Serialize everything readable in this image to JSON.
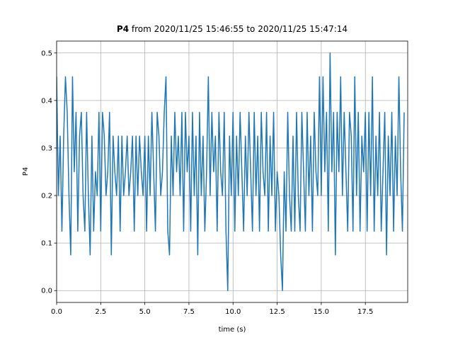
{
  "chart_data": {
    "type": "line",
    "title_bold": "P4",
    "title": "from 2020/11/25 15:46:55 to 2020/11/25 15:47:14",
    "xlabel": "time (s)",
    "ylabel": "P4",
    "color": "#1f77b4",
    "grid": true,
    "xlim": [
      0,
      19.9
    ],
    "ylim": [
      -0.025,
      0.525
    ],
    "xticks": [
      {
        "value": 0,
        "label": "0.0"
      },
      {
        "value": 2.5,
        "label": "2.5"
      },
      {
        "value": 5,
        "label": "5.0"
      },
      {
        "value": 7.5,
        "label": "7.5"
      },
      {
        "value": 10,
        "label": "10.0"
      },
      {
        "value": 12.5,
        "label": "12.5"
      },
      {
        "value": 15,
        "label": "15.0"
      },
      {
        "value": 17.5,
        "label": "17.5"
      }
    ],
    "yticks": [
      {
        "value": 0,
        "label": "0.0"
      },
      {
        "value": 0.1,
        "label": "0.1"
      },
      {
        "value": 0.2,
        "label": "0.2"
      },
      {
        "value": 0.3,
        "label": "0.3"
      },
      {
        "value": 0.4,
        "label": "0.4"
      },
      {
        "value": 0.5,
        "label": "0.5"
      }
    ],
    "x": [
      0,
      0.1,
      0.2,
      0.3,
      0.4,
      0.5,
      0.6,
      0.7,
      0.8,
      0.9,
      1,
      1.1,
      1.2,
      1.3,
      1.4,
      1.5,
      1.6,
      1.7,
      1.8,
      1.9,
      2,
      2.1,
      2.2,
      2.3,
      2.4,
      2.5,
      2.6,
      2.7,
      2.8,
      2.9,
      3,
      3.1,
      3.2,
      3.3,
      3.4,
      3.5,
      3.6,
      3.7,
      3.8,
      3.9,
      4,
      4.1,
      4.2,
      4.3,
      4.4,
      4.5,
      4.6,
      4.7,
      4.8,
      4.9,
      5,
      5.1,
      5.2,
      5.3,
      5.4,
      5.5,
      5.6,
      5.7,
      5.8,
      5.9,
      6,
      6.1,
      6.2,
      6.3,
      6.4,
      6.5,
      6.6,
      6.7,
      6.8,
      6.9,
      7,
      7.1,
      7.2,
      7.3,
      7.4,
      7.5,
      7.6,
      7.7,
      7.8,
      7.9,
      8,
      8.1,
      8.2,
      8.3,
      8.4,
      8.5,
      8.6,
      8.7,
      8.8,
      8.9,
      9,
      9.1,
      9.2,
      9.3,
      9.4,
      9.5,
      9.6,
      9.7,
      9.8,
      9.9,
      10,
      10.1,
      10.2,
      10.3,
      10.4,
      10.5,
      10.6,
      10.7,
      10.8,
      10.9,
      11,
      11.1,
      11.2,
      11.3,
      11.4,
      11.5,
      11.6,
      11.7,
      11.8,
      11.9,
      12,
      12.1,
      12.2,
      12.3,
      12.4,
      12.5,
      12.6,
      12.7,
      12.8,
      12.9,
      13,
      13.1,
      13.2,
      13.3,
      13.4,
      13.5,
      13.6,
      13.7,
      13.8,
      13.9,
      14,
      14.1,
      14.2,
      14.3,
      14.4,
      14.5,
      14.6,
      14.7,
      14.8,
      14.9,
      15,
      15.1,
      15.2,
      15.3,
      15.4,
      15.5,
      15.6,
      15.7,
      15.8,
      15.9,
      16,
      16.1,
      16.2,
      16.3,
      16.4,
      16.5,
      16.6,
      16.7,
      16.8,
      16.9,
      17,
      17.1,
      17.2,
      17.3,
      17.4,
      17.5,
      17.6,
      17.7,
      17.8,
      17.9,
      18,
      18.1,
      18.2,
      18.3,
      18.4,
      18.5,
      18.6,
      18.7,
      18.8,
      18.9,
      19,
      19.1,
      19.2,
      19.3,
      19.4,
      19.5,
      19.6,
      19.7
    ],
    "values": [
      0.45,
      0.2,
      0.325,
      0.125,
      0.325,
      0.45,
      0.375,
      0.2,
      0.075,
      0.45,
      0.25,
      0.375,
      0.125,
      0.325,
      0.375,
      0.2,
      0.125,
      0.375,
      0.2,
      0.075,
      0.325,
      0.125,
      0.25,
      0.2,
      0.375,
      0.125,
      0.375,
      0.325,
      0.2,
      0.25,
      0.375,
      0.075,
      0.325,
      0.25,
      0.2,
      0.325,
      0.125,
      0.325,
      0.2,
      0.25,
      0.325,
      0.2,
      0.25,
      0.325,
      0.125,
      0.325,
      0.2,
      0.325,
      0.25,
      0.2,
      0.325,
      0.125,
      0.325,
      0.2,
      0.375,
      0.25,
      0.125,
      0.375,
      0.325,
      0.2,
      0.25,
      0.375,
      0.45,
      0.125,
      0.075,
      0.325,
      0.2,
      0.375,
      0.25,
      0.325,
      0.2,
      0.375,
      0.125,
      0.375,
      0.25,
      0.325,
      0.125,
      0.375,
      0.2,
      0.325,
      0.075,
      0.375,
      0.2,
      0.325,
      0.125,
      0.25,
      0.45,
      0.2,
      0.375,
      0.25,
      0.325,
      0.125,
      0.375,
      0.25,
      0.2,
      0.375,
      0.125,
      0,
      0.325,
      0.2,
      0.375,
      0.125,
      0.325,
      0.2,
      0.375,
      0.25,
      0.125,
      0.325,
      0.2,
      0.375,
      0.25,
      0.125,
      0.375,
      0.2,
      0.325,
      0.125,
      0.375,
      0.25,
      0.2,
      0.375,
      0.125,
      0.325,
      0.2,
      0.375,
      0.125,
      0.25,
      0.2,
      0.075,
      0,
      0.25,
      0.125,
      0.375,
      0.2,
      0.125,
      0.325,
      0.125,
      0.375,
      0.2,
      0.125,
      0.375,
      0.25,
      0.125,
      0.375,
      0.2,
      0.325,
      0.125,
      0.375,
      0.25,
      0.2,
      0.45,
      0.2,
      0.45,
      0.25,
      0.375,
      0.125,
      0.5,
      0.25,
      0.375,
      0.075,
      0.375,
      0.25,
      0.45,
      0.2,
      0.375,
      0.25,
      0.125,
      0.375,
      0.325,
      0.125,
      0.45,
      0.2,
      0.375,
      0.125,
      0.325,
      0.25,
      0.375,
      0.125,
      0.375,
      0.2,
      0.45,
      0.125,
      0.325,
      0.2,
      0.375,
      0.125,
      0.25,
      0.375,
      0.075,
      0.325,
      0.2,
      0.375,
      0.125,
      0.325,
      0.2,
      0.45,
      0.25,
      0.125,
      0.375
    ]
  }
}
